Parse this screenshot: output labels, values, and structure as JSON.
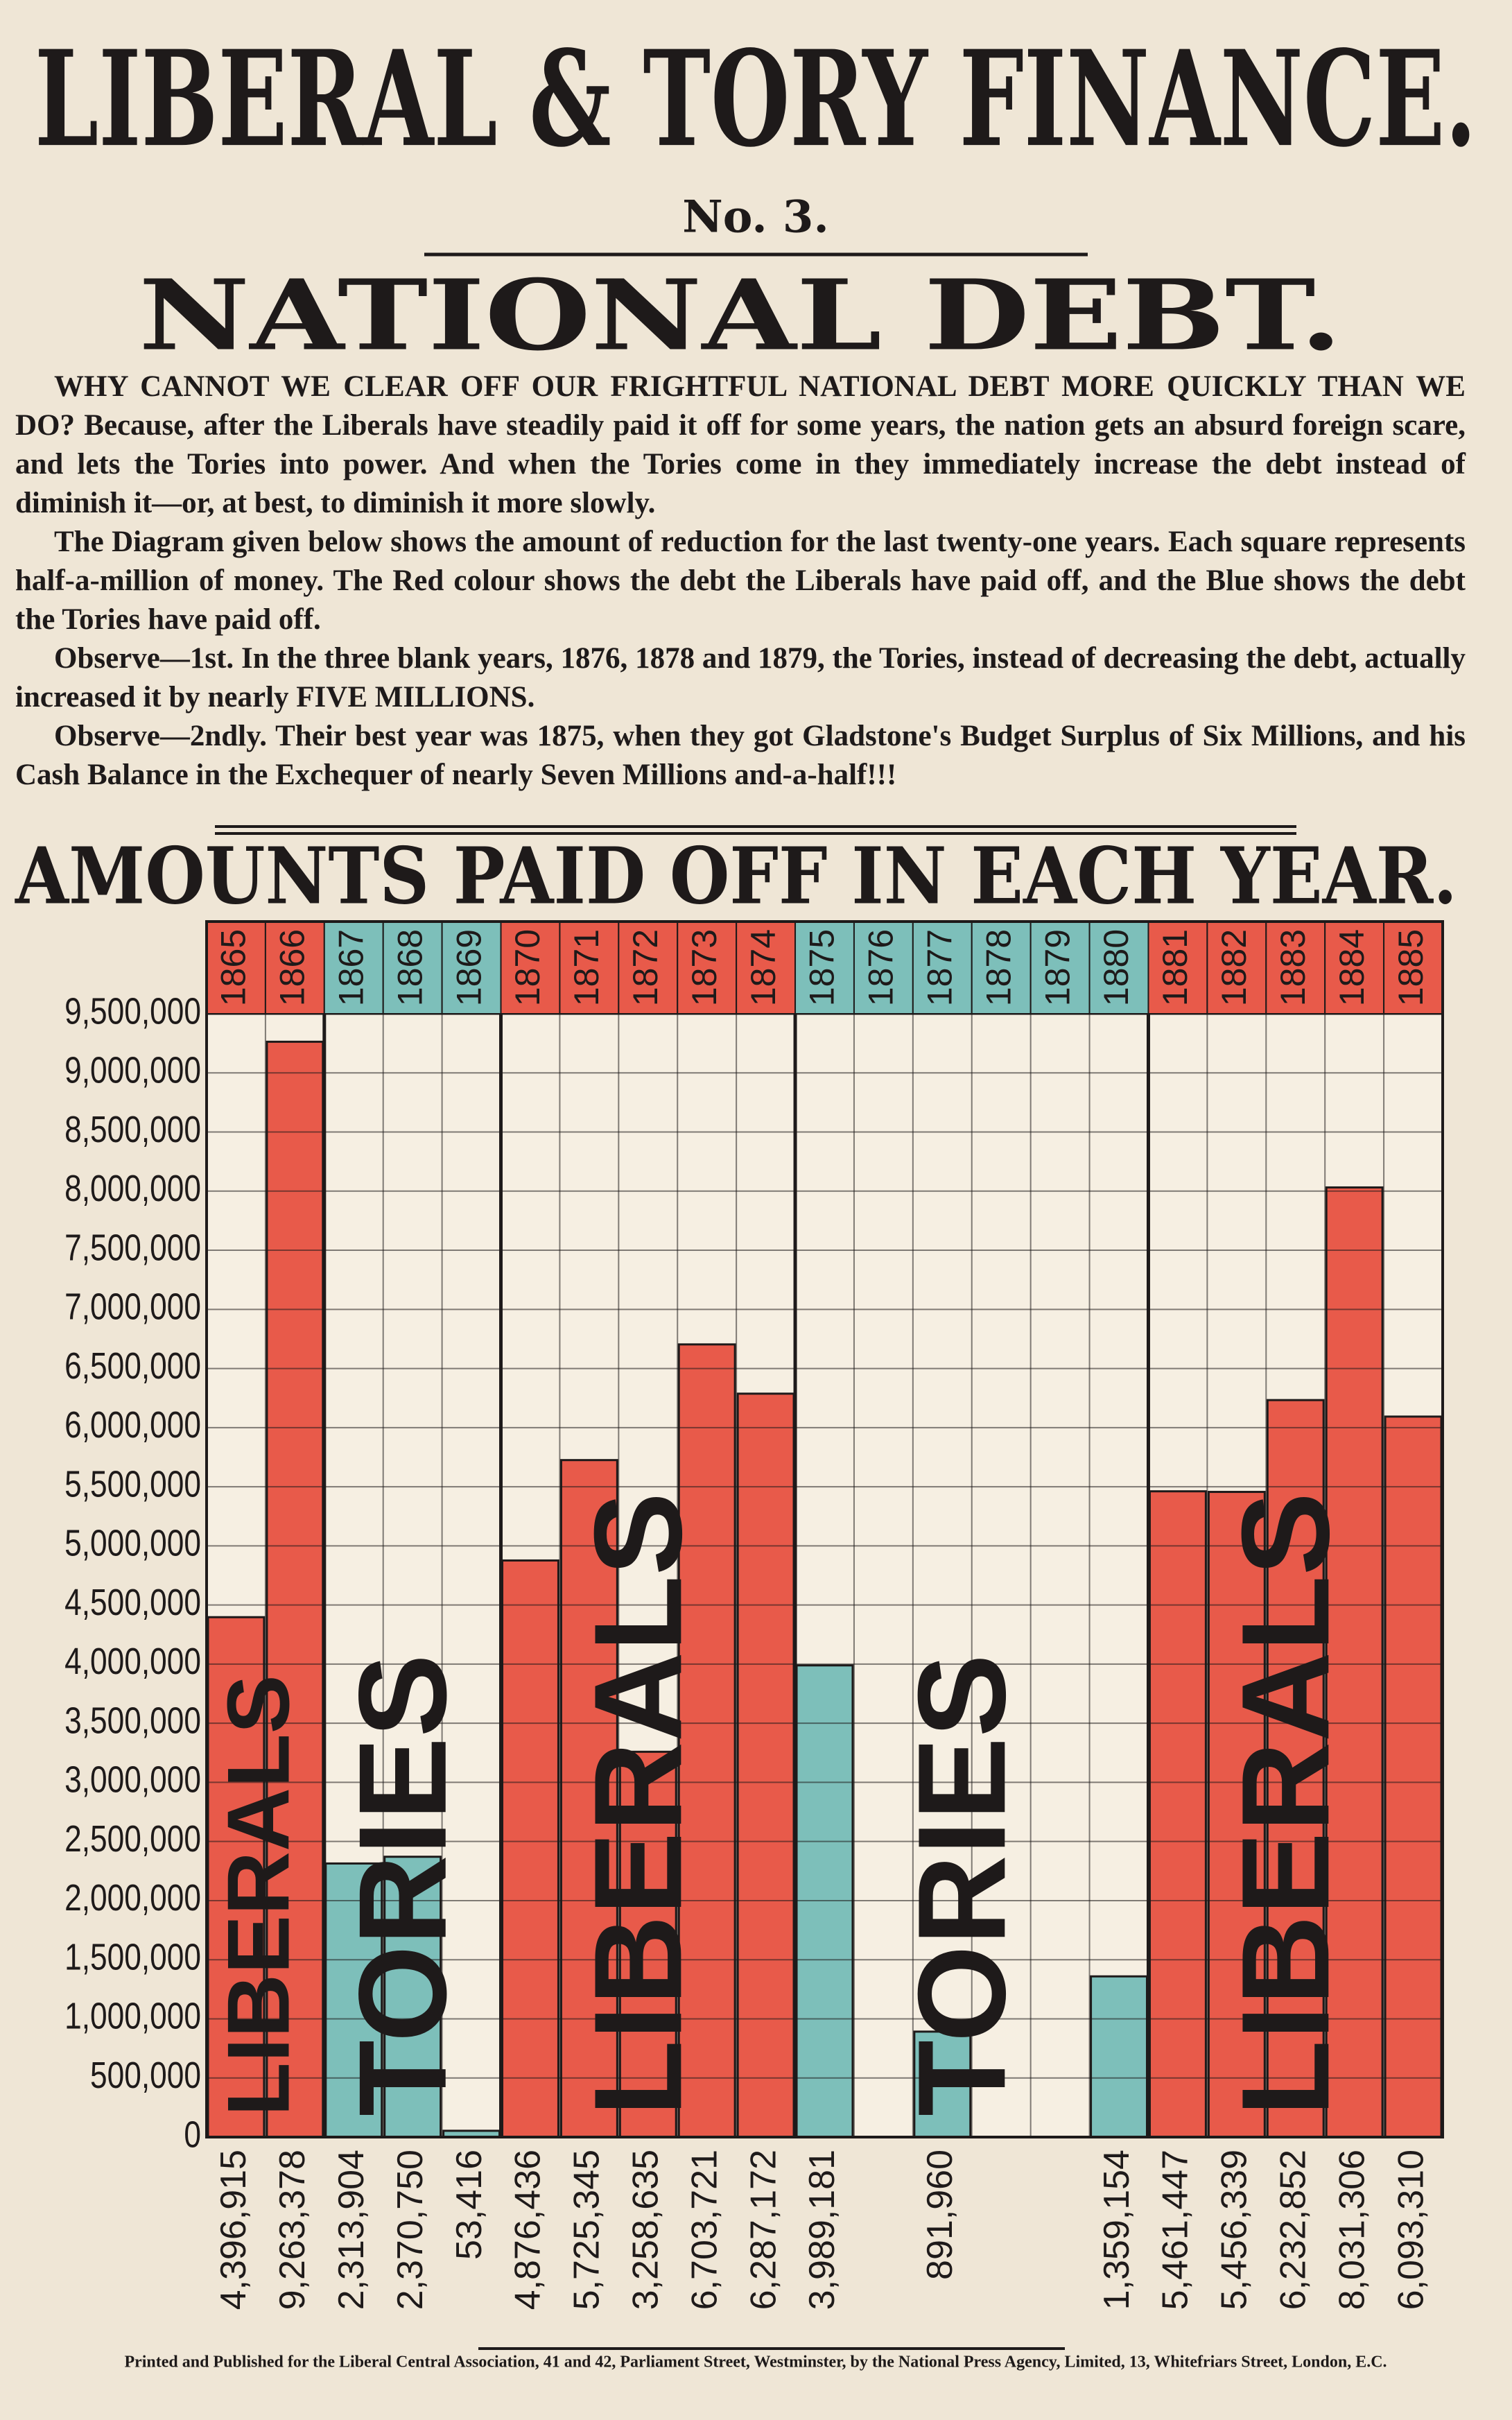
{
  "header": {
    "title": "LIBERAL & TORY FINANCE.",
    "number": "No. 3.",
    "subtitle": "NATIONAL DEBT."
  },
  "paragraphs": [
    "WHY CANNOT WE CLEAR OFF OUR FRIGHTFUL NATIONAL DEBT MORE QUICKLY THAN WE DO? Because, after the Liberals have steadily paid it off for some years, the nation gets an absurd foreign scare, and lets the Tories into power. And when the Tories come in they immediately increase the debt instead of diminish it—or, at best, to diminish it more slowly.",
    "The Diagram given below shows the amount of reduction for the last twenty-one years. Each square represents half-a-million of money. The Red colour shows the debt the Liberals have paid off, and the Blue shows the debt the Tories have paid off.",
    "Observe—1st. In the three blank years, 1876, 1878 and 1879, the Tories, instead of decreasing the debt, actually increased it by nearly FIVE MILLIONS.",
    "Observe—2ndly. Their best year was 1875, when they got Gladstone's Budget Surplus of Six Millions, and his Cash Balance in the Exchequer of nearly Seven Millions and-a-half!!!"
  ],
  "footer": "Printed and Published for the Liberal Central Association, 41 and 42, Parliament Street, Westminster, by the National Press Agency, Limited, 13, Whitefriars Street, London, E.C.",
  "chart_data": {
    "type": "bar",
    "title": "AMOUNTS PAID OFF IN EACH YEAR.",
    "categories": [
      "1865",
      "1866",
      "1867",
      "1868",
      "1869",
      "1870",
      "1871",
      "1872",
      "1873",
      "1874",
      "1875",
      "1876",
      "1877",
      "1878",
      "1879",
      "1880",
      "1881",
      "1882",
      "1883",
      "1884",
      "1885"
    ],
    "values": [
      4396915,
      9263378,
      2313904,
      2370750,
      53416,
      4876436,
      5725345,
      3258635,
      6703721,
      6287172,
      3989181,
      null,
      891960,
      null,
      null,
      1359154,
      5461447,
      5456339,
      6232852,
      8031306,
      6093310
    ],
    "value_labels": [
      "4,396,915",
      "9,263,378",
      "2,313,904",
      "2,370,750",
      "53,416",
      "4,876,436",
      "5,725,345",
      "3,258,635",
      "6,703,721",
      "6,287,172",
      "3,989,181",
      null,
      "891,960",
      null,
      null,
      "1,359,154",
      "5,461,447",
      "5,456,339",
      "6,232,852",
      "8,031,306",
      "6,093,310"
    ],
    "ylim": [
      0,
      9500000
    ],
    "yticks": [
      {
        "value": 0,
        "label": "0"
      },
      {
        "value": 500000,
        "label": "500,000"
      },
      {
        "value": 1000000,
        "label": "1,000,000"
      },
      {
        "value": 1500000,
        "label": "1,500,000"
      },
      {
        "value": 2000000,
        "label": "2,000,000"
      },
      {
        "value": 2500000,
        "label": "2,500,000"
      },
      {
        "value": 3000000,
        "label": "3,000,000"
      },
      {
        "value": 3500000,
        "label": "3,500,000"
      },
      {
        "value": 4000000,
        "label": "4,000,000"
      },
      {
        "value": 4500000,
        "label": "4,500,000"
      },
      {
        "value": 5000000,
        "label": "5,000,000"
      },
      {
        "value": 5500000,
        "label": "5,500,000"
      },
      {
        "value": 6000000,
        "label": "6,000,000"
      },
      {
        "value": 6500000,
        "label": "6,500,000"
      },
      {
        "value": 7000000,
        "label": "7,000,000"
      },
      {
        "value": 7500000,
        "label": "7,500,000"
      },
      {
        "value": 8000000,
        "label": "8,000,000"
      },
      {
        "value": 8500000,
        "label": "8,500,000"
      },
      {
        "value": 9000000,
        "label": "9,000,000"
      },
      {
        "value": 9500000,
        "label": "9,500,000"
      }
    ],
    "grid": true,
    "periods": [
      {
        "label": "LIBERALS",
        "color": "#e85a4a",
        "from": "1865",
        "to": "1866"
      },
      {
        "label": "TORIES",
        "color": "#7dbfba",
        "from": "1867",
        "to": "1869"
      },
      {
        "label": "LIBERALS",
        "color": "#e85a4a",
        "from": "1870",
        "to": "1874"
      },
      {
        "label": "TORIES",
        "color": "#7dbfba",
        "from": "1875",
        "to": "1880"
      },
      {
        "label": "LIBERALS",
        "color": "#e85a4a",
        "from": "1881",
        "to": "1885"
      }
    ]
  }
}
